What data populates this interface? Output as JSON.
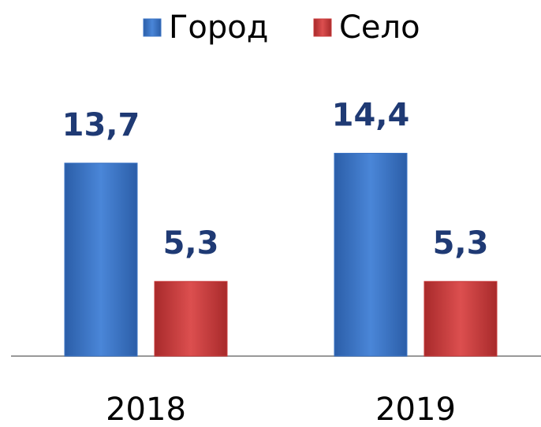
{
  "chart_data": {
    "type": "bar",
    "categories": [
      "2018",
      "2019"
    ],
    "series": [
      {
        "name": "Город",
        "color": "#3a73c4",
        "values": [
          13.7,
          14.4
        ],
        "value_labels": [
          "13,7",
          "14,4"
        ]
      },
      {
        "name": "Село",
        "color": "#c8393a",
        "values": [
          5.3,
          5.3
        ],
        "value_labels": [
          "5,3",
          "5,3"
        ]
      }
    ],
    "legend": "top"
  }
}
